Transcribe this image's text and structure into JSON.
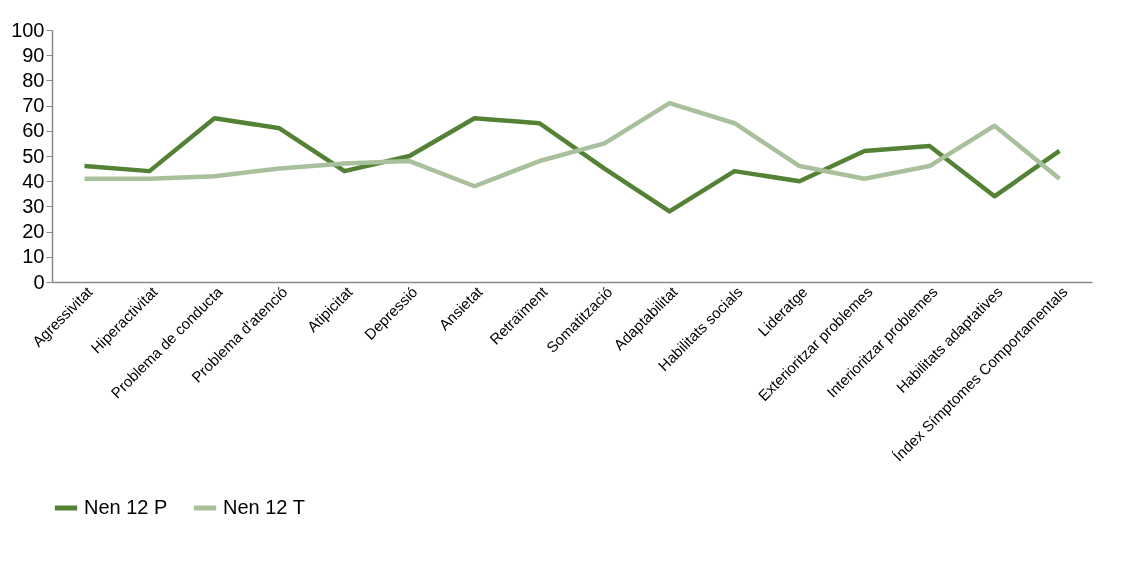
{
  "chart_data": {
    "type": "line",
    "categories": [
      "Agressivitat",
      "Hiperactivitat",
      "Problema de conducta",
      "Problema d'atenció",
      "Atipicitat",
      "Depressió",
      "Ansietat",
      "Retraïment",
      "Somatització",
      "Adaptabilitat",
      "Habilitats socials",
      "Lideratge",
      "Exterioritzar problemes",
      "Interioritzar problemes",
      "Habilitats adaptatives",
      "Índex Símptomes Comportamentals"
    ],
    "series": [
      {
        "name": "Nen  12 P",
        "color": "#548235",
        "values": [
          46,
          44,
          65,
          61,
          44,
          50,
          65,
          63,
          45,
          28,
          44,
          40,
          52,
          54,
          34,
          52
        ]
      },
      {
        "name": "Nen 12 T",
        "color": "#a9c09c",
        "values": [
          41,
          41,
          42,
          45,
          47,
          48,
          38,
          48,
          55,
          71,
          63,
          46,
          41,
          46,
          62,
          41
        ]
      }
    ],
    "ylim": [
      0,
      100
    ],
    "yticks": [
      0,
      10,
      20,
      30,
      40,
      50,
      60,
      70,
      80,
      90,
      100
    ],
    "grid": false,
    "legend": "bottom",
    "marker": "none",
    "line_style": "solid"
  }
}
